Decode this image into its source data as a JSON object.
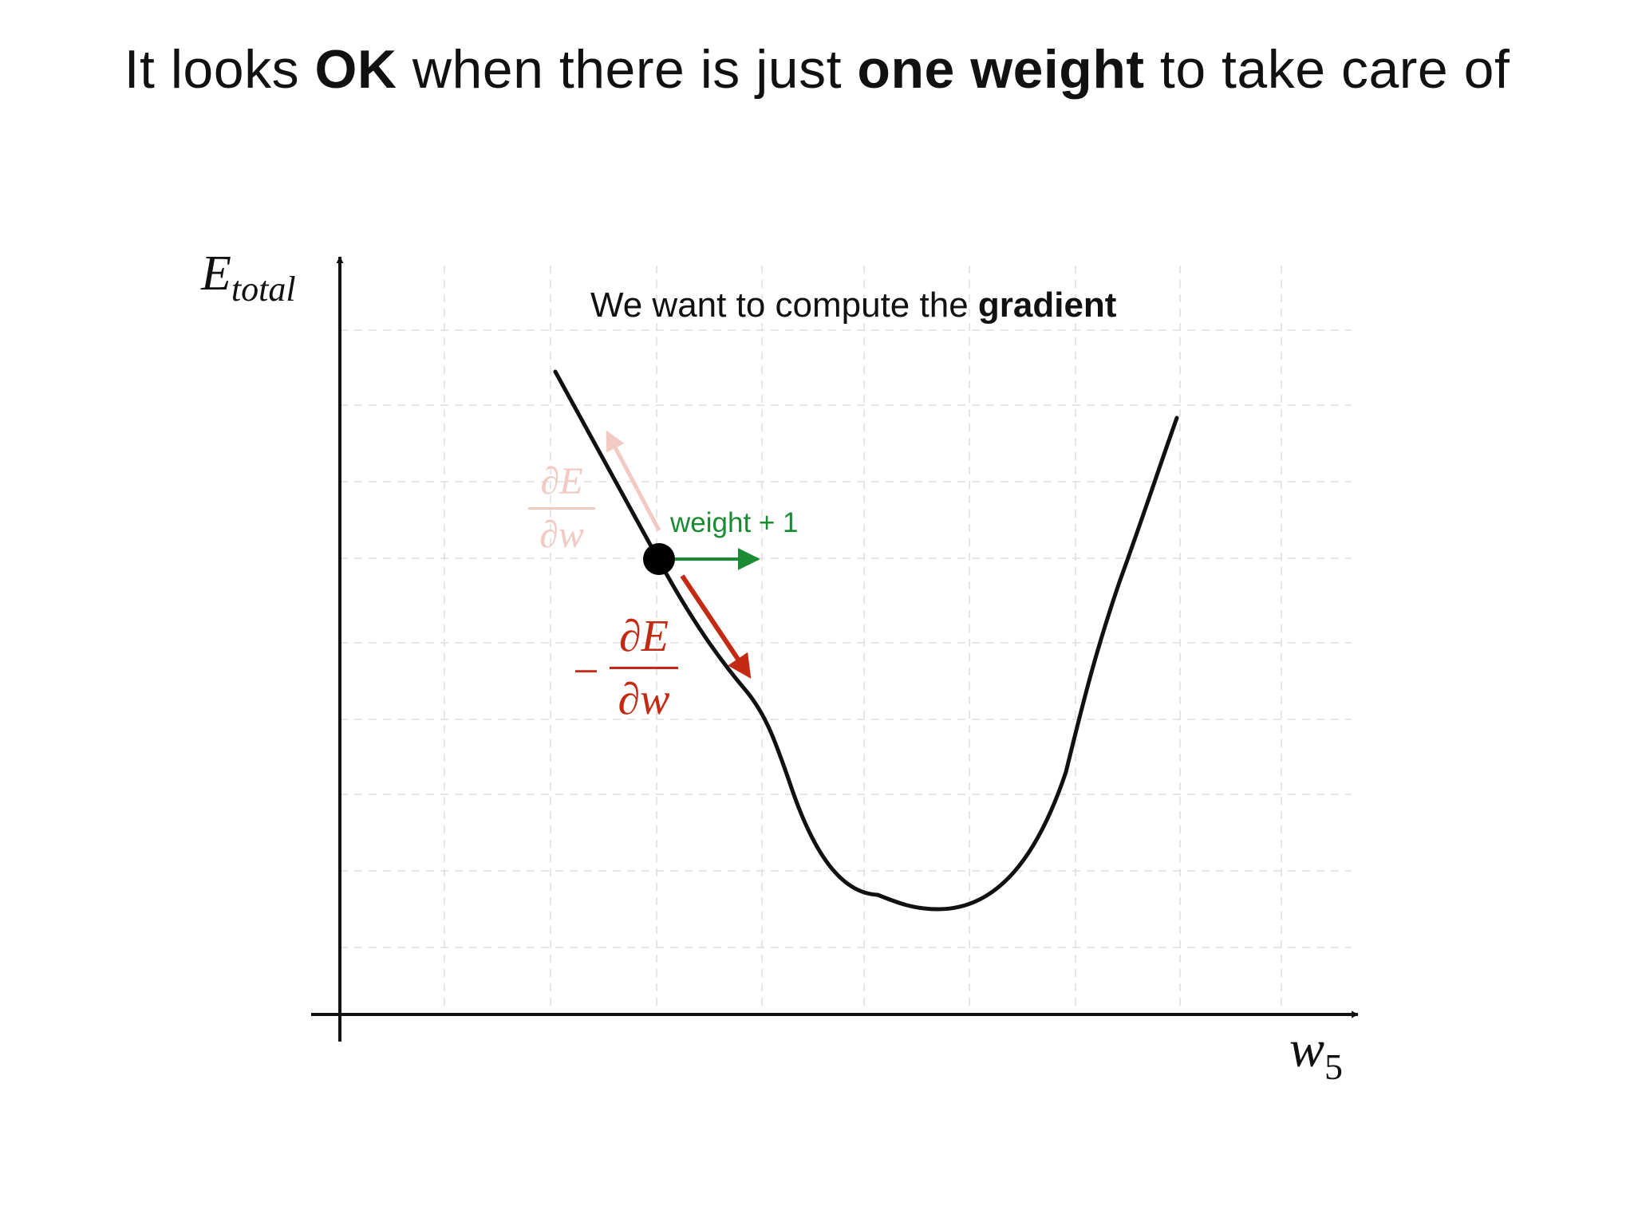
{
  "slide": {
    "title_parts": [
      {
        "text": "It looks ",
        "bold": false
      },
      {
        "text": "OK",
        "bold": true
      },
      {
        "text": " when there is just ",
        "bold": false
      },
      {
        "text": "one weight",
        "bold": true
      },
      {
        "text": " to take care of",
        "bold": false
      }
    ],
    "subtitle_prefix": "We want to compute the ",
    "subtitle_bold": "gradient"
  },
  "axes": {
    "y_label_main": "E",
    "y_label_sub": "total",
    "x_label_main": "w",
    "x_label_sub": "5"
  },
  "annotations": {
    "step_label": "weight + 1",
    "gradient_fraction": {
      "numerator": "∂E",
      "denominator": "∂w"
    },
    "negative_gradient_fraction": {
      "sign": "−",
      "numerator": "∂E",
      "denominator": "∂w"
    }
  },
  "colors": {
    "curve": "#111111",
    "grid": "#dddddd",
    "step_arrow": "#1a8a33",
    "negative_gradient": "#c32a14",
    "gradient_faded": "#f2c9c3"
  }
}
